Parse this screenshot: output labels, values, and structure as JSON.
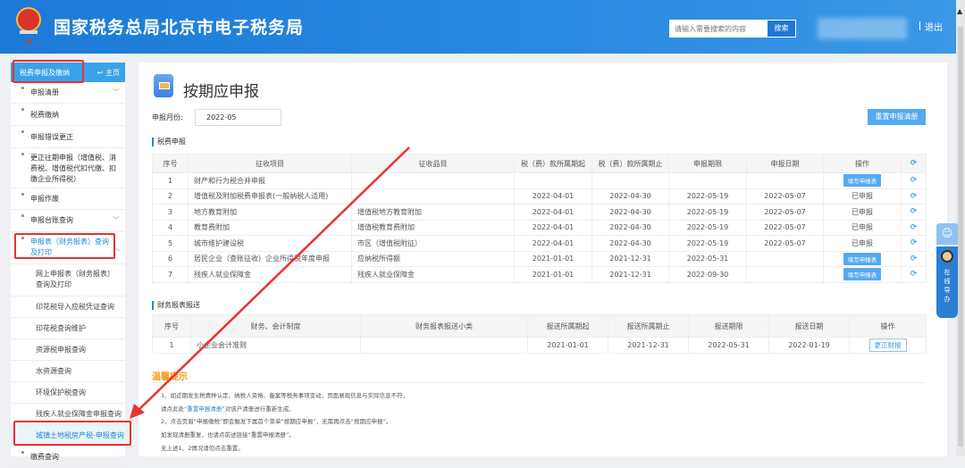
{
  "header": {
    "title": "国家税务总局北京市电子税务局",
    "logo_text": "中国税务",
    "search_placeholder": "请输入需要搜索的内容",
    "search_button": "搜索",
    "logout": "退出"
  },
  "sidebar": {
    "title": "税费申报及缴纳",
    "home": "主页",
    "items": [
      {
        "label": "申报清册"
      },
      {
        "label": "税费缴纳"
      },
      {
        "label": "申报错误更正"
      },
      {
        "label": "更正往期申报（增值税、消费税、增值税代扣代缴、扣缴企业所得税）"
      },
      {
        "label": "申报作废"
      },
      {
        "label": "申报台账查询"
      },
      {
        "label": "申报表（财务报表）查询及打印"
      },
      {
        "label": "网上申报表（财务报表）查询及打印"
      },
      {
        "label": "印花税导入应税凭证查询"
      },
      {
        "label": "印花税查询维护"
      },
      {
        "label": "资源税申报查询"
      },
      {
        "label": "水资源查询"
      },
      {
        "label": "环境保护税查询"
      },
      {
        "label": "残疾人就业保障金申报查询"
      },
      {
        "label": "城镇土地税房产税-申报查询"
      },
      {
        "label": "缴费查询"
      }
    ]
  },
  "main": {
    "title": "按期应申报",
    "month_label": "申报月份:",
    "month_value": "2022-05",
    "reset_button": "重置申报清册",
    "tax_section": "税费申报",
    "tax_headers": [
      "序号",
      "征收项目",
      "征收品目",
      "税（费）款所属期起",
      "税（费）款所属期止",
      "申报期限",
      "申报日期",
      "操作"
    ],
    "tax_rows": [
      [
        "1",
        "财产和行为税合并申报",
        "",
        "",
        "",
        "",
        "",
        "填写申报表"
      ],
      [
        "2",
        "增值税及附加税费申报表(一般纳税人适用)",
        "",
        "2022-04-01",
        "2022-04-30",
        "2022-05-19",
        "2022-05-07",
        "已申报"
      ],
      [
        "3",
        "地方教育附加",
        "增值税地方教育附加",
        "2022-04-01",
        "2022-04-30",
        "2022-05-19",
        "2022-05-07",
        "已申报"
      ],
      [
        "4",
        "教育费附加",
        "增值税教育费附加",
        "2022-04-01",
        "2022-04-30",
        "2022-05-19",
        "2022-05-07",
        "已申报"
      ],
      [
        "5",
        "城市维护建设税",
        "市区（增值税附征）",
        "2022-04-01",
        "2022-04-30",
        "2022-05-19",
        "2022-05-07",
        "已申报"
      ],
      [
        "6",
        "居民企业（查账征收）企业所得税年度申报",
        "应纳税所得额",
        "2021-01-01",
        "2021-12-31",
        "2022-05-31",
        "",
        "填写申报表"
      ],
      [
        "7",
        "残疾人就业保障金",
        "残疾人就业保障金",
        "2021-01-01",
        "2021-12-31",
        "2022-09-30",
        "",
        "填写申报表"
      ]
    ],
    "fin_section": "财务报表报送",
    "fin_headers": [
      "序号",
      "财务、会计制度",
      "财务报表报送小类",
      "报送所属期起",
      "报送所属期止",
      "报送期限",
      "报送日期",
      "操作"
    ],
    "fin_rows": [
      [
        "1",
        "小企业会计准则",
        "",
        "2021-01-01",
        "2021-12-31",
        "2022-05-31",
        "2022-01-19",
        "更正财报"
      ]
    ],
    "tips_title": "温馨提示",
    "tips": {
      "l1": "1、如近期发生税费种认定、纳税人资格、备案等税务事项变动，页面展现信息与实际信息不符，",
      "l2a": "请点此处",
      "l2b": "“重置申报清册”",
      "l2c": "对该户清册进行重新生成。",
      "l3": "2、点击页眉“申报缴税”即会触发下属首个菜单“按期应申报”，无需再点击“按期应申报”。",
      "l4": "如发现清册重复，也请点前述链接“重置申报清册”。",
      "l5": "无上述1、2情况请勿点击重置。"
    }
  },
  "widget": {
    "label": "在线导办"
  },
  "colors": {
    "header": "#1e7fd8",
    "accent": "#1a8ad8",
    "annotation": "#e8322e",
    "tips": "#f29a1a"
  }
}
